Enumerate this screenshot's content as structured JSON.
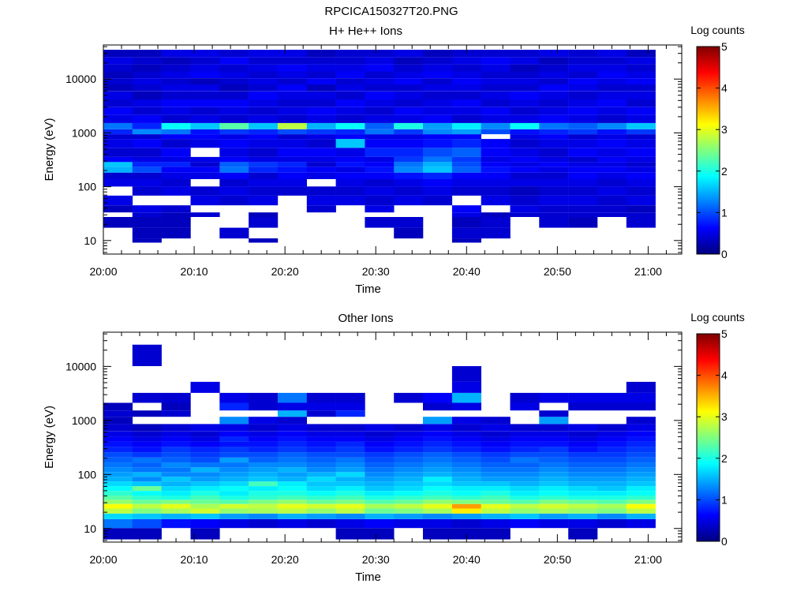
{
  "title": "RPCICA150327T20.PNG",
  "palette": {
    "empty": "#ffffff",
    "axis": "#000000",
    "colormap": [
      "#00007f",
      "#0000ff",
      "#007fff",
      "#00ffff",
      "#7fff7f",
      "#ffff00",
      "#ff7f00",
      "#ff0000",
      "#7f0000"
    ]
  },
  "chart_data": [
    {
      "type": "heatmap",
      "title": "H+ He++ Ions",
      "xlabel": "Time",
      "ylabel": "Energy (eV)",
      "x_ticks": [
        "20:00",
        "20:10",
        "20:20",
        "20:30",
        "20:40",
        "20:50",
        "21:00"
      ],
      "x_tick_minutes": [
        0,
        10,
        20,
        30,
        40,
        50,
        60
      ],
      "xlim_minutes": [
        0,
        63.7
      ],
      "y_ticks": [
        "10",
        "100",
        "1000",
        "10000"
      ],
      "y_tick_values": [
        10,
        100,
        1000,
        10000
      ],
      "ylim": [
        5.6,
        43000
      ],
      "ylog": true,
      "time_bin_minutes": 3.2,
      "n_time_bins": 19,
      "colorbar": {
        "label": "Log counts",
        "ticks": [
          "0",
          "1",
          "2",
          "3",
          "4",
          "5"
        ],
        "range": [
          0,
          5
        ]
      },
      "channels_eV": [
        10,
        12,
        25,
        30,
        37,
        55,
        85,
        120,
        160,
        210,
        260,
        320,
        400,
        700,
        850,
        1050,
        1300,
        1800,
        2600,
        3500,
        5000,
        7000,
        9000,
        12000,
        16000,
        22000,
        30000
      ],
      "counts_log": [
        [
          0,
          0,
          0.3,
          0,
          0.3,
          0.5,
          0,
          0.5,
          0.4,
          1.5,
          1.6,
          0.6,
          0.4,
          0.5,
          0.4,
          0.8,
          1.2,
          0.5,
          0.6,
          0.4,
          0.5,
          0.3,
          0.4,
          0.3,
          0.4,
          0.5,
          0.3
        ],
        [
          0.3,
          0.3,
          0.3,
          0.4,
          0.5,
          0,
          0.4,
          0.5,
          0.4,
          1.0,
          0.8,
          0.5,
          0.4,
          0.6,
          0.4,
          1.3,
          0.8,
          0.6,
          0.4,
          0.5,
          0.3,
          0.4,
          0.5,
          0.4,
          0.3,
          0.4,
          0.3
        ],
        [
          0,
          0.3,
          0.3,
          0.3,
          0.4,
          0,
          0.5,
          0.4,
          0.5,
          0.6,
          0.8,
          0.5,
          0.6,
          0.4,
          0.6,
          1.2,
          1.9,
          0.4,
          0.5,
          0.6,
          0.4,
          0.5,
          0.4,
          0.5,
          0.4,
          0.3,
          0.5
        ],
        [
          0,
          0,
          0,
          0.4,
          0,
          0.5,
          0.4,
          0,
          0.5,
          0.6,
          0.4,
          0.5,
          0,
          0.5,
          0.6,
          0.7,
          1.6,
          0.5,
          0.4,
          0.6,
          0.4,
          0.5,
          0.3,
          0.6,
          0.5,
          0.4,
          0.5
        ],
        [
          0,
          0.4,
          0,
          0,
          0,
          0.4,
          0.5,
          0.4,
          0.6,
          1.2,
          1.1,
          0.6,
          0.5,
          0.6,
          0.5,
          0.9,
          2.3,
          0.4,
          0.5,
          0.6,
          0.4,
          0.3,
          0.4,
          0.5,
          0.4,
          0.6,
          0.4
        ],
        [
          0.3,
          0,
          0.4,
          0.3,
          0,
          0.5,
          0.4,
          0.5,
          0.4,
          0.8,
          0.9,
          0.5,
          0.4,
          0.5,
          0.6,
          0.8,
          1.6,
          0.5,
          0.4,
          0.5,
          0.6,
          0.4,
          0.5,
          0.4,
          0.5,
          0.4,
          0.5
        ],
        [
          0,
          0,
          0,
          0,
          0,
          0,
          0.4,
          0.5,
          0.6,
          0.7,
          0.8,
          0.5,
          0.6,
          0.5,
          0.4,
          1.0,
          2.8,
          0.4,
          0.5,
          0.4,
          0.5,
          0.6,
          0.4,
          0.5,
          0.6,
          0.4,
          0.5
        ],
        [
          0,
          0,
          0,
          0,
          0.4,
          0.5,
          0.4,
          0,
          0.5,
          0.6,
          0.4,
          0.5,
          0.6,
          0.4,
          0.5,
          0.9,
          1.5,
          0.5,
          0.6,
          0.4,
          0.5,
          0.3,
          0.6,
          0.4,
          0.5,
          0.4,
          0.3
        ],
        [
          0,
          0,
          0,
          0,
          0,
          0.5,
          0.4,
          0.5,
          0.6,
          0.5,
          0.7,
          0.6,
          0.5,
          1.6,
          0.6,
          0.8,
          1.9,
          0.4,
          0.5,
          0.6,
          0.4,
          0.5,
          0.4,
          0.6,
          0.5,
          0.4,
          0.4
        ],
        [
          0,
          0,
          0.4,
          0,
          0.5,
          0.4,
          0.5,
          0.4,
          0.6,
          0.7,
          0.6,
          0.5,
          0.8,
          0.6,
          0.5,
          1.2,
          1.1,
          0.5,
          0.4,
          0.5,
          0.6,
          0.4,
          0.5,
          0.4,
          0.6,
          0.5,
          0.4
        ],
        [
          0,
          0.3,
          0.4,
          0,
          0,
          0.5,
          0.4,
          0.5,
          0.7,
          1.3,
          1.2,
          0.9,
          0.8,
          0.6,
          0.5,
          0.9,
          2.0,
          0.5,
          0.6,
          0.4,
          0.5,
          0.4,
          0.6,
          0.5,
          0.4,
          0.3,
          0.5
        ],
        [
          0,
          0,
          0,
          0,
          0,
          0.4,
          0.5,
          0.6,
          0.8,
          1.6,
          1.5,
          1.2,
          1.0,
          0.7,
          0.6,
          1.3,
          1.4,
          0.6,
          0.5,
          0.5,
          0.4,
          0.5,
          0.4,
          0.6,
          0.5,
          0.4,
          0.3
        ],
        [
          0.3,
          0.4,
          0.3,
          0.5,
          0.6,
          0,
          0.4,
          0.5,
          0.6,
          1.1,
          1.0,
          0.9,
          1.1,
          0.8,
          0.6,
          1.4,
          1.8,
          0.4,
          0.5,
          0.6,
          0.4,
          0.5,
          0.6,
          0.5,
          0.4,
          0.5,
          0.4
        ],
        [
          0,
          0.4,
          0.4,
          0.3,
          0,
          0.5,
          0.4,
          0.5,
          0.6,
          0.7,
          0.6,
          0.5,
          0.6,
          0.6,
          0,
          1.0,
          1.3,
          0.5,
          0.6,
          0.4,
          0.5,
          0.4,
          0.5,
          0.4,
          0.5,
          0.6,
          0.4
        ],
        [
          0,
          0,
          0,
          0.4,
          0.5,
          0.4,
          0.3,
          0.5,
          0.4,
          0.6,
          0.5,
          0.6,
          0.5,
          0.4,
          0.5,
          0.7,
          1.9,
          0.5,
          0.4,
          0.5,
          0.6,
          0.4,
          0.5,
          0.4,
          0.3,
          0.5,
          0.4
        ],
        [
          0,
          0,
          0.4,
          0.4,
          0.4,
          0.5,
          0.4,
          0.5,
          0.4,
          0.5,
          0.6,
          0.5,
          0.4,
          0.5,
          0.6,
          0.8,
          1.2,
          0.6,
          0.5,
          0.4,
          0.5,
          0.6,
          0.4,
          0.5,
          0.4,
          0.3,
          0.5
        ],
        [
          0,
          0,
          0.3,
          0.4,
          0.4,
          0.5,
          0.4,
          0.5,
          0.6,
          0.6,
          0.5,
          0.4,
          0.6,
          0.5,
          0.4,
          0.9,
          1.1,
          0.5,
          0.6,
          0.5,
          0.4,
          0.5,
          0.6,
          0.4,
          0.5,
          0.4,
          0.4
        ],
        [
          0,
          0,
          0,
          0.4,
          0.4,
          0.4,
          0.5,
          0.4,
          0.5,
          0.6,
          0.5,
          0.6,
          0.5,
          0.6,
          0.5,
          0.7,
          1.3,
          0.4,
          0.5,
          0.6,
          0.5,
          0.4,
          0.5,
          0.6,
          0.5,
          0.4,
          0.5
        ],
        [
          0,
          0,
          0.4,
          0.4,
          0.3,
          0.5,
          0.4,
          0.5,
          0.6,
          0.5,
          0.4,
          0.5,
          0.6,
          0.5,
          0.4,
          0.9,
          1.6,
          0.5,
          0.6,
          0.4,
          0.5,
          0.4,
          0.6,
          0.5,
          0.4,
          0.5,
          0.3
        ]
      ]
    },
    {
      "type": "heatmap",
      "title": "Other Ions",
      "xlabel": "Time",
      "ylabel": "Energy (eV)",
      "x_ticks": [
        "20:00",
        "20:10",
        "20:20",
        "20:30",
        "20:40",
        "20:50",
        "21:00"
      ],
      "x_tick_minutes": [
        0,
        10,
        20,
        30,
        40,
        50,
        60
      ],
      "xlim_minutes": [
        0,
        63.7
      ],
      "y_ticks": [
        "10",
        "100",
        "1000",
        "10000"
      ],
      "y_tick_values": [
        10,
        100,
        1000,
        10000
      ],
      "ylim": [
        5.6,
        43000
      ],
      "ylog": true,
      "time_bin_minutes": 3.2,
      "n_time_bins": 19,
      "colorbar": {
        "label": "Log counts",
        "ticks": [
          "0",
          "1",
          "2",
          "3",
          "4",
          "5"
        ],
        "range": [
          0,
          5
        ]
      },
      "channels_eV": [
        8,
        13,
        17,
        21,
        26,
        31,
        37,
        45,
        55,
        67,
        82,
        100,
        122,
        150,
        185,
        230,
        290,
        360,
        450,
        560,
        700,
        1050,
        1300,
        1800,
        2500,
        4200,
        6400,
        16000
      ],
      "counts_log": [
        [
          0.3,
          1.2,
          1.7,
          2.8,
          3.1,
          2.6,
          2.3,
          2.1,
          1.9,
          1.7,
          1.5,
          1.4,
          1.3,
          1.2,
          1.1,
          1.0,
          0.8,
          0.7,
          0.6,
          0.5,
          0.4,
          0.3,
          0.4,
          0.3,
          0,
          0,
          0,
          0
        ],
        [
          0.3,
          1.0,
          1.6,
          2.5,
          2.8,
          2.4,
          2.1,
          1.9,
          2.4,
          1.6,
          1.3,
          1.5,
          1.2,
          1.1,
          1.2,
          0.9,
          0.7,
          0.6,
          0.5,
          0.4,
          0.3,
          0,
          0.3,
          0,
          0.4,
          0,
          0,
          0.4
        ],
        [
          0,
          0.7,
          1.5,
          2.7,
          3.0,
          2.5,
          2.0,
          1.8,
          1.7,
          1.5,
          1.6,
          1.3,
          1.2,
          1.3,
          1.1,
          1.0,
          0.9,
          0.7,
          0.6,
          0.5,
          0.4,
          0,
          0.4,
          0.3,
          0.4,
          0,
          0,
          0
        ],
        [
          0.3,
          0.6,
          1.6,
          2.9,
          2.7,
          2.4,
          2.2,
          2.0,
          1.8,
          1.6,
          1.4,
          1.3,
          1.5,
          1.2,
          1.0,
          0.9,
          0.8,
          0.6,
          0.5,
          0.4,
          0.5,
          0,
          0,
          0,
          0,
          0.5,
          0,
          0
        ],
        [
          0,
          0.5,
          1.4,
          2.6,
          2.9,
          2.3,
          2.0,
          1.8,
          1.9,
          1.7,
          1.5,
          1.4,
          1.3,
          1.2,
          1.4,
          1.0,
          0.9,
          0.7,
          0.8,
          0.6,
          0.5,
          1.3,
          0,
          0.8,
          0.5,
          0,
          0,
          0
        ],
        [
          0,
          0.4,
          1.3,
          2.7,
          2.8,
          2.5,
          2.1,
          2.0,
          1.8,
          2.2,
          1.6,
          1.5,
          1.4,
          1.3,
          1.1,
          1.0,
          0.8,
          0.7,
          0.6,
          0.5,
          0.4,
          0.5,
          0,
          0.4,
          0.4,
          0,
          0,
          0
        ],
        [
          0,
          0.5,
          1.5,
          2.8,
          3.0,
          2.6,
          2.2,
          2.0,
          1.9,
          1.8,
          1.5,
          1.4,
          1.5,
          1.3,
          1.2,
          1.1,
          0.9,
          0.8,
          0.7,
          0.6,
          0.5,
          0.4,
          1.5,
          0.5,
          1.2,
          0,
          0,
          0
        ],
        [
          0,
          0.4,
          1.4,
          2.6,
          2.9,
          2.4,
          2.1,
          1.9,
          1.7,
          1.6,
          1.7,
          1.5,
          1.3,
          1.2,
          1.1,
          1.0,
          0.8,
          0.7,
          0.6,
          0.5,
          0.4,
          0,
          0.4,
          0.5,
          0.4,
          0,
          0,
          0
        ],
        [
          0.3,
          0.5,
          1.3,
          2.8,
          3.0,
          2.5,
          2.2,
          2.0,
          1.8,
          1.6,
          1.5,
          1.7,
          1.4,
          1.3,
          1.2,
          1.0,
          0.9,
          0.8,
          0.6,
          0.5,
          0.4,
          0,
          0.8,
          0.5,
          0.4,
          0,
          0,
          0
        ],
        [
          0.3,
          0.6,
          1.5,
          2.4,
          2.7,
          2.3,
          2.0,
          1.8,
          1.6,
          1.5,
          1.4,
          1.3,
          1.2,
          1.1,
          1.0,
          0.9,
          0.7,
          0.6,
          0.5,
          0.4,
          0.5,
          0,
          0,
          0,
          0,
          0,
          0,
          0
        ],
        [
          0,
          0.5,
          1.4,
          2.5,
          2.8,
          2.4,
          2.1,
          1.9,
          1.7,
          1.6,
          1.5,
          1.4,
          1.3,
          1.2,
          1.1,
          1.0,
          0.8,
          0.7,
          0.6,
          0.5,
          0.4,
          0,
          0,
          0,
          0.4,
          0,
          0,
          0
        ],
        [
          0.3,
          0.5,
          1.3,
          2.7,
          3.0,
          2.6,
          2.2,
          2.0,
          1.9,
          1.7,
          1.8,
          1.5,
          1.4,
          1.3,
          1.2,
          1.1,
          0.9,
          0.8,
          0.7,
          0.6,
          0.5,
          1.4,
          0,
          0.4,
          0.6,
          0,
          0,
          0
        ],
        [
          0.3,
          0.4,
          1.4,
          3.2,
          3.6,
          2.5,
          2.1,
          1.9,
          1.8,
          1.6,
          1.5,
          1.4,
          1.3,
          1.2,
          1.1,
          1.0,
          0.8,
          0.7,
          0.6,
          0.5,
          0.4,
          0.5,
          0,
          0.5,
          1.5,
          0.5,
          0.4,
          0
        ],
        [
          0.3,
          0.5,
          1.5,
          2.8,
          3.0,
          2.4,
          2.2,
          2.0,
          1.8,
          1.6,
          1.4,
          1.3,
          1.2,
          1.1,
          1.0,
          0.9,
          0.7,
          0.6,
          0.5,
          0.4,
          0.5,
          0.4,
          0,
          0,
          0,
          0,
          0,
          0
        ],
        [
          0,
          0.6,
          1.6,
          2.6,
          2.8,
          2.3,
          2.0,
          1.8,
          1.7,
          1.5,
          1.4,
          1.3,
          1.2,
          1.1,
          1.2,
          1.0,
          0.8,
          0.7,
          0.6,
          0.5,
          0.4,
          0,
          0,
          0.5,
          0.4,
          0,
          0,
          0
        ],
        [
          0,
          0.5,
          1.4,
          2.7,
          2.9,
          2.5,
          2.1,
          1.9,
          1.8,
          1.6,
          1.5,
          1.4,
          1.3,
          1.2,
          1.1,
          1.0,
          0.9,
          0.7,
          0.6,
          0.5,
          0.4,
          1.4,
          0.4,
          0,
          0.5,
          0,
          0,
          0
        ],
        [
          0.3,
          0.5,
          1.5,
          2.6,
          2.8,
          2.4,
          2.0,
          1.8,
          1.7,
          1.5,
          1.4,
          1.3,
          1.2,
          1.1,
          1.0,
          0.9,
          0.7,
          0.6,
          0.5,
          0.4,
          0.5,
          0,
          0,
          0.4,
          0.5,
          0,
          0,
          0
        ],
        [
          0,
          0.4,
          1.3,
          2.5,
          2.7,
          2.3,
          2.0,
          1.8,
          1.6,
          1.5,
          1.4,
          1.3,
          1.2,
          1.1,
          1.0,
          0.9,
          0.8,
          0.7,
          0.6,
          0.5,
          0.4,
          0,
          0,
          0.4,
          0.5,
          0,
          0,
          0
        ],
        [
          0,
          0.5,
          1.5,
          2.8,
          3.1,
          2.5,
          2.1,
          1.9,
          1.8,
          1.6,
          1.5,
          1.4,
          1.3,
          1.2,
          1.1,
          1.0,
          0.9,
          0.8,
          0.7,
          0.6,
          0.5,
          0.4,
          0,
          0.4,
          0.5,
          0.4,
          0,
          0
        ]
      ]
    }
  ]
}
